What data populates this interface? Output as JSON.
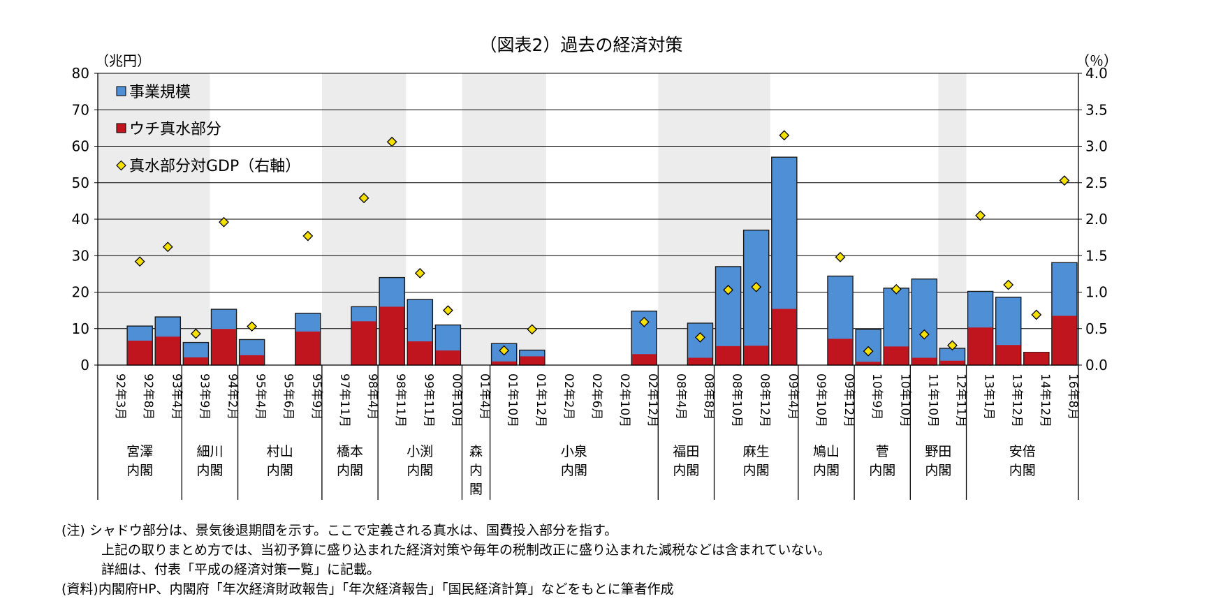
{
  "notes": {
    "note1": "(注) シャドウ部分は、景気後退期間を示す。ここで定義される真水は、国費投入部分を指す。",
    "note2": "上記の取りまとめ方では、当初予算に盛り込まれた経済対策や毎年の税制改正に盛り込まれた減税などは含まれていない。",
    "note3": "詳細は、付表「平成の経済対策一覧」に記載。",
    "source": "(資料)内閣府HP、内閣府「年次経済財政報告」「年次経済報告」「国民経済計算」などをもとに筆者作成"
  },
  "chart_data": {
    "type": "bar",
    "title": "（図表2）過去の経済対策",
    "ylabel": "（兆円）",
    "y2label": "（％）",
    "ylim": [
      0,
      80
    ],
    "y2lim": [
      0,
      4.0
    ],
    "yticks": [
      "0",
      "10",
      "20",
      "30",
      "40",
      "50",
      "60",
      "70",
      "80"
    ],
    "y2ticks": [
      "0.0",
      "0.5",
      "1.0",
      "1.5",
      "2.0",
      "2.5",
      "3.0",
      "3.5",
      "4.0"
    ],
    "grid": true,
    "legend_position": "top-left",
    "categories": [
      "92年3月",
      "92年8月",
      "93年4月",
      "93年9月",
      "94年2月",
      "95年4月",
      "95年6月",
      "95年9月",
      "97年11月",
      "98年4月",
      "98年11月",
      "99年11月",
      "00年10月",
      "01年4月",
      "01年10月",
      "01年12月",
      "02年2月",
      "02年6月",
      "02年10月",
      "02年12月",
      "08年4月",
      "08年8月",
      "08年10月",
      "08年12月",
      "09年4月",
      "09年10月",
      "09年12月",
      "10年9月",
      "10年10月",
      "11年10月",
      "12年11月",
      "13年1月",
      "13年12月",
      "14年12月",
      "16年8月"
    ],
    "series": [
      {
        "name": "事業規模",
        "axis": "left",
        "color": "#4f8fd6",
        "values": [
          0,
          10.7,
          13.2,
          6.2,
          15.3,
          7.0,
          0,
          14.2,
          0,
          16.0,
          24.0,
          18.0,
          11.0,
          0,
          5.9,
          4.1,
          0,
          0,
          0,
          14.8,
          0,
          11.5,
          27.0,
          37.0,
          57.0,
          0,
          24.4,
          9.8,
          21.1,
          23.6,
          4.6,
          20.2,
          18.6,
          3.5,
          28.1
        ]
      },
      {
        "name": "ウチ真水部分",
        "axis": "left",
        "color": "#c0151e",
        "values": [
          0,
          6.7,
          7.8,
          2.1,
          9.9,
          2.7,
          0,
          9.2,
          0,
          12.0,
          16.0,
          6.5,
          4.0,
          0,
          1.0,
          2.4,
          0,
          0,
          0,
          3.0,
          0,
          2.0,
          5.2,
          5.3,
          15.4,
          0,
          7.2,
          0.9,
          5.1,
          2.0,
          1.2,
          10.3,
          5.5,
          3.5,
          13.5
        ]
      },
      {
        "name": "真水部分対GDP（右軸）",
        "axis": "right",
        "color": "#f5e000",
        "values": [
          null,
          1.42,
          1.62,
          0.43,
          1.96,
          0.53,
          null,
          1.77,
          null,
          2.29,
          3.06,
          1.26,
          0.75,
          null,
          0.2,
          0.49,
          null,
          null,
          null,
          0.59,
          null,
          0.38,
          1.03,
          1.07,
          3.15,
          null,
          1.48,
          0.19,
          1.04,
          0.42,
          0.27,
          2.05,
          1.1,
          0.69,
          2.53
        ]
      }
    ],
    "recession_shading": [
      [
        0,
        3
      ],
      [
        8,
        10
      ],
      [
        13,
        15
      ],
      [
        20,
        23
      ],
      [
        30,
        30
      ]
    ],
    "cabinets": [
      {
        "name": "宮澤内閣",
        "lines": [
          "宮澤",
          "内閣"
        ],
        "start": 0,
        "end": 2
      },
      {
        "name": "細川内閣",
        "lines": [
          "細川",
          "内閣"
        ],
        "start": 3,
        "end": 4
      },
      {
        "name": "村山内閣",
        "lines": [
          "村山",
          "内閣"
        ],
        "start": 5,
        "end": 7
      },
      {
        "name": "橋本内閣",
        "lines": [
          "橋本",
          "内閣"
        ],
        "start": 8,
        "end": 9
      },
      {
        "name": "小渕内閣",
        "lines": [
          "小渕",
          "内閣"
        ],
        "start": 10,
        "end": 12
      },
      {
        "name": "森内閣",
        "lines": [
          "森",
          "内",
          "閣"
        ],
        "start": 13,
        "end": 13
      },
      {
        "name": "小泉内閣",
        "lines": [
          "小泉",
          "内閣"
        ],
        "start": 14,
        "end": 19
      },
      {
        "name": "福田内閣",
        "lines": [
          "福田",
          "内閣"
        ],
        "start": 20,
        "end": 21
      },
      {
        "name": "麻生内閣",
        "lines": [
          "麻生",
          "内閣"
        ],
        "start": 22,
        "end": 24
      },
      {
        "name": "鳩山内閣",
        "lines": [
          "鳩山",
          "内閣"
        ],
        "start": 25,
        "end": 26
      },
      {
        "name": "菅内閣",
        "lines": [
          "菅",
          "内閣"
        ],
        "start": 27,
        "end": 28
      },
      {
        "name": "野田内閣",
        "lines": [
          "野田",
          "内閣"
        ],
        "start": 29,
        "end": 30
      },
      {
        "name": "安倍内閣",
        "lines": [
          "安倍",
          "内閣"
        ],
        "start": 31,
        "end": 34
      }
    ]
  }
}
